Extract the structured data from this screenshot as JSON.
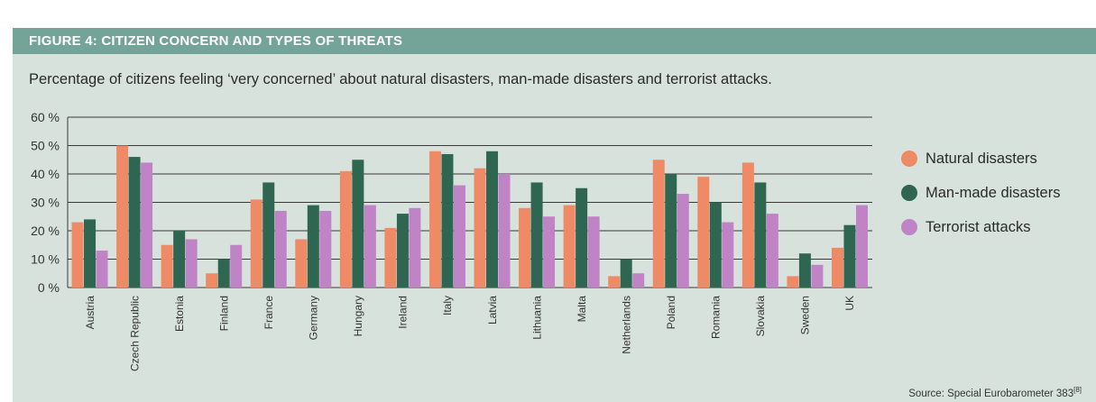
{
  "header": {
    "title": "FIGURE 4: CITIZEN CONCERN AND TYPES OF THREATS"
  },
  "subtitle": "Percentage of citizens feeling ‘very concerned’ about natural disasters, man-made disasters and terrorist attacks.",
  "source": {
    "text": "Source: Special Eurobarometer 383",
    "ref": "[8]"
  },
  "colors": {
    "natural": "#ee8a66",
    "manmade": "#2e6652",
    "terrorist": "#c083c6",
    "header_bg": "#74a498",
    "panel_bg": "#d8e2dd"
  },
  "chart_data": {
    "type": "bar",
    "title": "",
    "xlabel": "",
    "ylabel": "",
    "ylim": [
      0,
      60
    ],
    "yticks": [
      0,
      10,
      20,
      30,
      40,
      50,
      60
    ],
    "ytick_labels": [
      "0 %",
      "10 %",
      "20 %",
      "30 %",
      "40 %",
      "50 %",
      "60 %"
    ],
    "grid": true,
    "legend_position": "right",
    "categories": [
      "Austria",
      "Czech Republic",
      "Estonia",
      "Finland",
      "France",
      "Germany",
      "Hungary",
      "Ireland",
      "Italy",
      "Latvia",
      "Lithuania",
      "Malta",
      "Netherlands",
      "Poland",
      "Romania",
      "Slovakia",
      "Sweden",
      "UK"
    ],
    "series": [
      {
        "name": "Natural disasters",
        "color": "#ee8a66",
        "values": [
          23,
          50,
          15,
          5,
          31,
          17,
          41,
          21,
          48,
          42,
          28,
          29,
          4,
          45,
          39,
          44,
          4,
          14
        ]
      },
      {
        "name": "Man-made disasters",
        "color": "#2e6652",
        "values": [
          24,
          46,
          20,
          10,
          37,
          29,
          45,
          26,
          47,
          48,
          37,
          35,
          10,
          40,
          30,
          37,
          12,
          22
        ]
      },
      {
        "name": "Terrorist attacks",
        "color": "#c083c6",
        "values": [
          13,
          44,
          17,
          15,
          27,
          27,
          29,
          28,
          36,
          40,
          25,
          25,
          5,
          33,
          23,
          26,
          8,
          29
        ]
      }
    ]
  }
}
